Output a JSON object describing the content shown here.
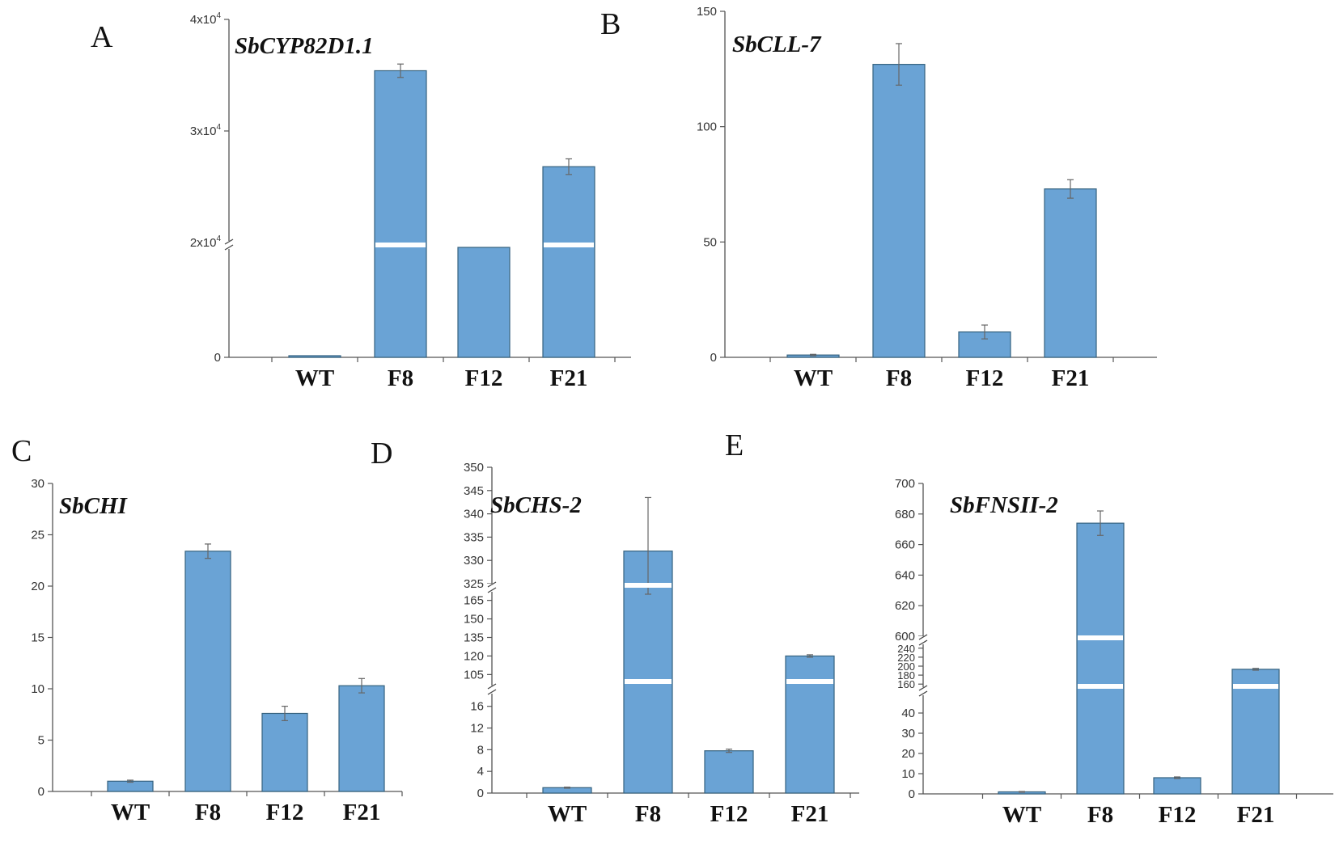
{
  "panel_letters": [
    "A",
    "B",
    "C",
    "D",
    "E"
  ],
  "chart_data": [
    {
      "panel": "A",
      "type": "bar",
      "title": "SbCYP82D1.1",
      "categories": [
        "WT",
        "F8",
        "F12",
        "F21"
      ],
      "values": [
        0,
        35400,
        19500,
        26800
      ],
      "errors": [
        0,
        600,
        100,
        700
      ],
      "ylim": [
        0,
        40000
      ],
      "axis_break": {
        "from": 19000,
        "to": 20000
      },
      "yticks": [
        0,
        20000,
        30000,
        40000
      ],
      "ytick_labels": [
        {
          "base": "0",
          "exp": ""
        },
        {
          "base": "2x10",
          "exp": "4"
        },
        {
          "base": "3x10",
          "exp": "4"
        },
        {
          "base": "4x10",
          "exp": "4"
        }
      ]
    },
    {
      "panel": "B",
      "type": "bar",
      "title": "SbCLL-7",
      "categories": [
        "WT",
        "F8",
        "F12",
        "F21"
      ],
      "values": [
        1,
        127,
        11,
        73
      ],
      "errors": [
        0.3,
        9,
        3,
        4
      ],
      "ylim": [
        0,
        150
      ],
      "yticks": [
        0,
        50,
        100,
        150
      ],
      "ytick_labels": [
        "0",
        "50",
        "100",
        "150"
      ]
    },
    {
      "panel": "C",
      "type": "bar",
      "title": "SbCHI",
      "categories": [
        "WT",
        "F8",
        "F12",
        "F21"
      ],
      "values": [
        1,
        23.4,
        7.6,
        10.3
      ],
      "errors": [
        0.1,
        0.7,
        0.7,
        0.7
      ],
      "ylim": [
        0,
        30
      ],
      "yticks": [
        0,
        5,
        10,
        15,
        20,
        25,
        30
      ],
      "ytick_labels": [
        "0",
        "5",
        "10",
        "15",
        "20",
        "25",
        "30"
      ]
    },
    {
      "panel": "D",
      "type": "bar",
      "title": "SbCHS-2",
      "categories": [
        "WT",
        "F8",
        "F12",
        "F21"
      ],
      "values": [
        1,
        332,
        7.8,
        120
      ],
      "errors": [
        0.1,
        11.5,
        0.3,
        1
      ],
      "ylim": [
        0,
        350
      ],
      "axis_breaks": [
        {
          "from": 17,
          "to": 100
        },
        {
          "from": 170,
          "to": 325
        }
      ],
      "yticks": [
        0,
        4,
        8,
        12,
        16,
        105,
        120,
        135,
        150,
        165,
        325,
        330,
        335,
        340,
        345,
        350
      ],
      "ytick_labels": [
        "0",
        "4",
        "8",
        "12",
        "16",
        "105",
        "120",
        "135",
        "150",
        "165",
        "325",
        "330",
        "335",
        "340",
        "345",
        "350"
      ]
    },
    {
      "panel": "E",
      "type": "bar",
      "title": "SbFNSII-2",
      "categories": [
        "WT",
        "F8",
        "F12",
        "F21"
      ],
      "values": [
        1,
        674,
        8,
        193
      ],
      "errors": [
        0.2,
        8,
        0.4,
        2
      ],
      "ylim": [
        0,
        700
      ],
      "axis_breaks": [
        {
          "from": 48,
          "to": 155
        },
        {
          "from": 245,
          "to": 600
        }
      ],
      "yticks": [
        0,
        10,
        20,
        30,
        40,
        160,
        180,
        200,
        220,
        240,
        600,
        620,
        640,
        660,
        680,
        700
      ],
      "ytick_labels": [
        "0",
        "10",
        "20",
        "30",
        "40",
        "160",
        "180",
        "200",
        "220",
        "240",
        "600",
        "620",
        "640",
        "660",
        "680",
        "700"
      ]
    }
  ]
}
